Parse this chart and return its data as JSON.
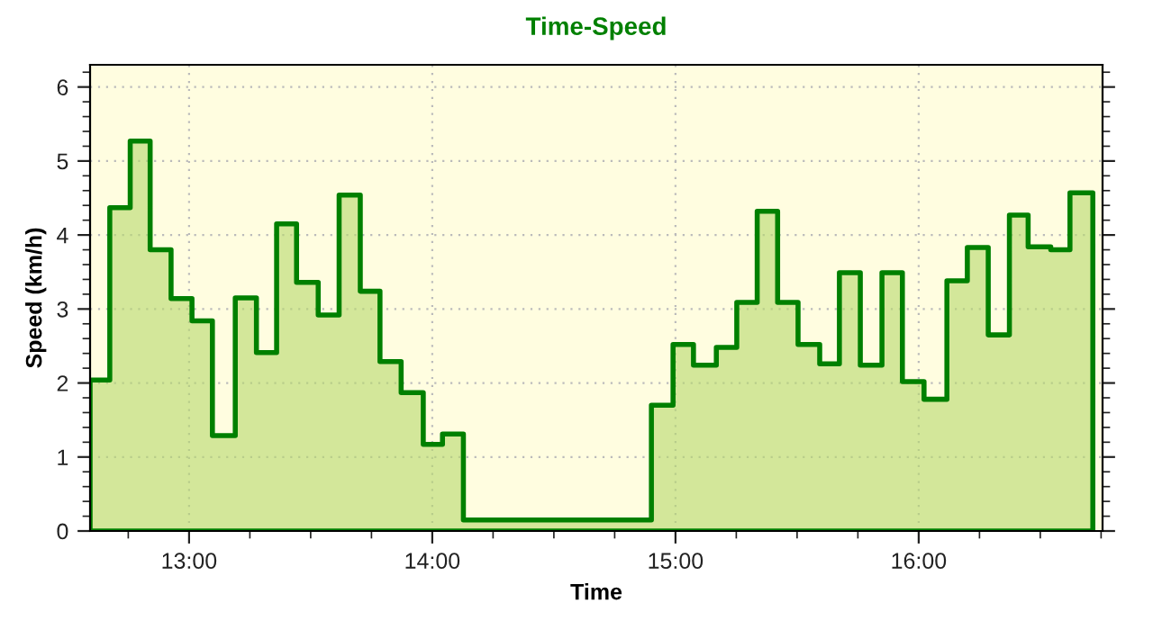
{
  "chart_data": {
    "type": "area",
    "title": "Time-Speed",
    "xlabel": "Time",
    "ylabel": "Speed (km/h)",
    "series": [
      {
        "color": "#008000",
        "x": [
          12.593,
          12.674,
          12.758,
          12.84,
          12.926,
          13.012,
          13.096,
          13.19,
          13.277,
          13.36,
          13.442,
          13.531,
          13.617,
          13.704,
          13.785,
          13.872,
          13.963,
          14.042,
          14.128,
          14.901,
          14.99,
          15.074,
          15.168,
          15.252,
          15.336,
          15.42,
          15.504,
          15.593,
          15.674,
          15.76,
          15.849,
          15.933,
          16.022,
          16.116,
          16.2,
          16.286,
          16.373,
          16.45,
          16.543,
          16.622,
          16.716
        ],
        "values": [
          2.04,
          4.37,
          5.27,
          3.8,
          3.14,
          2.84,
          1.29,
          3.15,
          2.41,
          4.15,
          3.36,
          2.92,
          4.54,
          3.24,
          2.29,
          1.87,
          1.17,
          1.31,
          0.15,
          1.7,
          2.52,
          2.24,
          2.48,
          3.09,
          4.32,
          3.09,
          2.52,
          2.26,
          3.49,
          2.24,
          3.49,
          2.02,
          1.78,
          3.38,
          3.83,
          2.65,
          4.27,
          3.84,
          3.8,
          4.57,
          4.57
        ]
      }
    ],
    "xlim": [
      12.593,
      16.756
    ],
    "ylim": [
      0,
      6.3
    ],
    "xticks": [
      {
        "value": 13,
        "label": "13:00"
      },
      {
        "value": 14,
        "label": "14:00"
      },
      {
        "value": 15,
        "label": "15:00"
      },
      {
        "value": 16,
        "label": "16:00"
      }
    ],
    "yticks": [
      0,
      1,
      2,
      3,
      4,
      5,
      6
    ],
    "grid": true,
    "legend": false
  }
}
